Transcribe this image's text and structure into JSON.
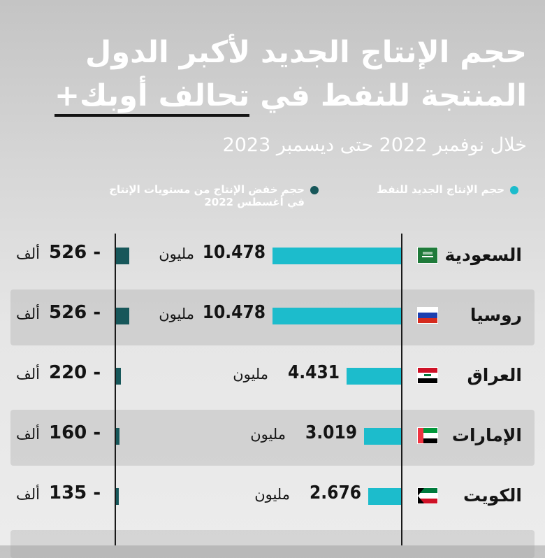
{
  "title": {
    "line1": "حجم الإنتاج الجديد لأكبر الدول",
    "line2_part1": "المنتجة للنفط في",
    "line2_part2": "تحالف أوبك+"
  },
  "subtitle": "خلال نوفمبر 2022 حتى ديسمبر 2023",
  "legend": {
    "new_production": "حجم الإنتاج الجديد للنفط",
    "cut_line1": "حجم خفض الإنتاج من مستويات الإنتاج",
    "cut_line2": "في أغسطس 2022"
  },
  "colors": {
    "new_production": "#1cbccc",
    "production_cut": "#17575a"
  },
  "chart_data": {
    "type": "bar",
    "categories": [
      "السعودية",
      "روسيا",
      "العراق",
      "الإمارات",
      "الكويت"
    ],
    "series": [
      {
        "name": "حجم الإنتاج الجديد للنفط",
        "values": [
          10.478,
          10.478,
          4.431,
          3.019,
          2.676
        ],
        "labels": [
          "10.478",
          "10.478",
          "4.431",
          "3.019",
          "2.676"
        ],
        "unit": "مليون"
      },
      {
        "name": "حجم خفض الإنتاج من مستويات الإنتاج في أغسطس 2022",
        "values": [
          -526,
          -526,
          -220,
          -160,
          -135
        ],
        "labels": [
          "526 -",
          "526 -",
          "220 -",
          "160 -",
          "135 -"
        ],
        "unit": "ألف"
      }
    ],
    "flags": [
      "flag-saudi-arabia",
      "flag-russia",
      "flag-iraq",
      "flag-uae",
      "flag-kuwait"
    ]
  }
}
